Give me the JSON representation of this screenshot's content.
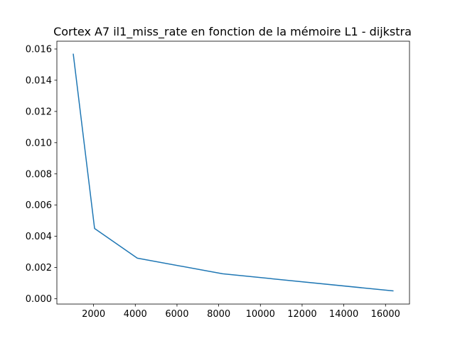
{
  "chart_data": {
    "type": "line",
    "title": "Cortex A7 il1_miss_rate en fonction de la mémoire L1 - dijkstra",
    "xlabel": "",
    "ylabel": "",
    "xlim": [
      240,
      17150
    ],
    "ylim": [
      -0.00034,
      0.0165
    ],
    "xticks": [
      2000,
      4000,
      6000,
      8000,
      10000,
      12000,
      14000,
      16000
    ],
    "yticks": [
      0.0,
      0.002,
      0.004,
      0.006,
      0.008,
      0.01,
      0.012,
      0.014,
      0.016
    ],
    "xtick_labels": [
      "2000",
      "4000",
      "6000",
      "8000",
      "10000",
      "12000",
      "14000",
      "16000"
    ],
    "ytick_labels": [
      "0.000",
      "0.002",
      "0.004",
      "0.006",
      "0.008",
      "0.010",
      "0.012",
      "0.014",
      "0.016"
    ],
    "grid": false,
    "series": [
      {
        "color": "#1f77b4",
        "x": [
          1024,
          2048,
          4096,
          8192,
          16384
        ],
        "y": [
          0.0157,
          0.0045,
          0.0026,
          0.0016,
          0.0005
        ]
      }
    ]
  }
}
